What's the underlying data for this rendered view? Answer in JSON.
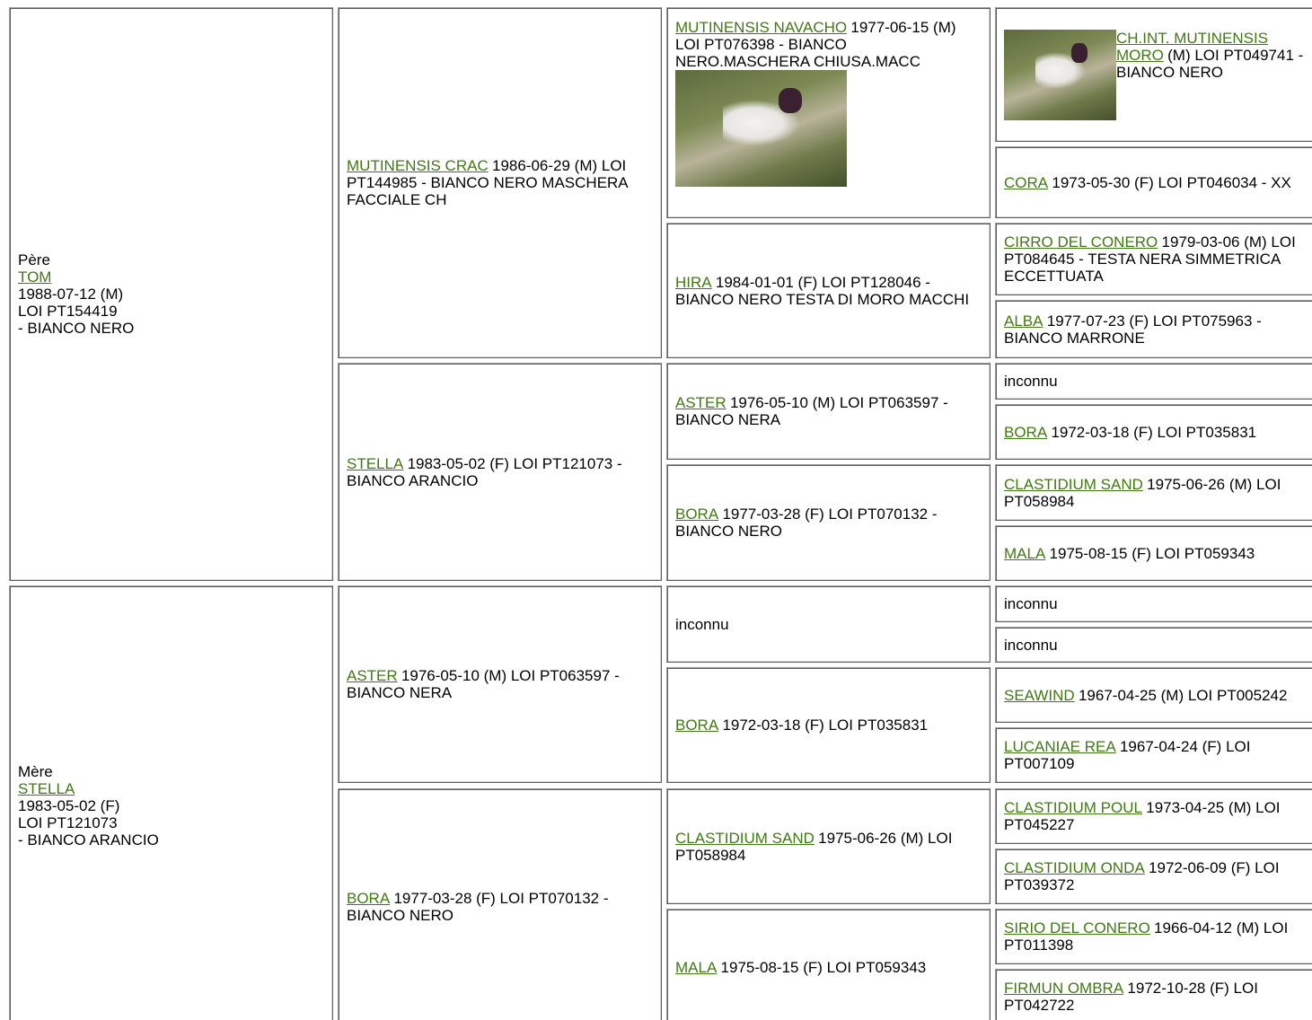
{
  "parents": [
    {
      "label": "Père",
      "name": "TOM",
      "lines": [
        "1988-07-12 (M)",
        "LOI PT154419",
        "- BIANCO NERO"
      ]
    },
    {
      "label": "Mère",
      "name": "STELLA",
      "lines": [
        "1983-05-02 (F)",
        "LOI PT121073",
        "- BIANCO ARANCIO"
      ]
    }
  ],
  "grandparents": [
    {
      "name": "MUTINENSIS CRAC",
      "details": "1986-06-29 (M) LOI PT144985 - BIANCO NERO MASCHERA FACCIALE CH"
    },
    {
      "name": "STELLA",
      "details": "1983-05-02 (F) LOI PT121073 - BIANCO ARANCIO"
    },
    {
      "name": "ASTER",
      "details": "1976-05-10 (M) LOI PT063597 - BIANCO NERA"
    },
    {
      "name": "BORA",
      "details": "1977-03-28 (F) LOI PT070132 - BIANCO NERO"
    }
  ],
  "great_grandparents": [
    {
      "name": "MUTINENSIS NAVACHO",
      "details": "1977-06-15 (M) LOI PT076398 - BIANCO NERO.MASCHERA CHIUSA.MACC"
    },
    {
      "name": "HIRA",
      "details": "1984-01-01 (F) LOI PT128046 - BIANCO NERO TESTA DI MORO MACCHI"
    },
    {
      "name": "ASTER",
      "details": "1976-05-10 (M) LOI PT063597 - BIANCO NERA"
    },
    {
      "name": "BORA",
      "details": "1977-03-28 (F) LOI PT070132 - BIANCO NERO"
    },
    {
      "unknown": "inconnu"
    },
    {
      "name": "BORA",
      "details": "1972-03-18 (F) LOI PT035831"
    },
    {
      "name": "CLASTIDIUM SAND",
      "details": "1975-06-26 (M) LOI PT058984"
    },
    {
      "name": "MALA",
      "details": "1975-08-15 (F) LOI PT059343"
    }
  ],
  "great_great_grandparents": [
    {
      "name": "CH.INT. MUTINENSIS MORO",
      "details": "(M) LOI PT049741 - BIANCO NERO"
    },
    {
      "name": "CORA",
      "details": "1973-05-30 (F) LOI PT046034 - XX"
    },
    {
      "name": "CIRRO DEL CONERO",
      "details": "1979-03-06 (M) LOI PT084645 - TESTA NERA SIMMETRICA ECCETTUATA"
    },
    {
      "name": "ALBA",
      "details": "1977-07-23 (F) LOI PT075963 - BIANCO MARRONE"
    },
    {
      "unknown": "inconnu"
    },
    {
      "name": "BORA",
      "details": "1972-03-18 (F) LOI PT035831"
    },
    {
      "name": "CLASTIDIUM SAND",
      "details": "1975-06-26 (M) LOI PT058984"
    },
    {
      "name": "MALA",
      "details": "1975-08-15 (F) LOI PT059343"
    },
    {
      "unknown": "inconnu"
    },
    {
      "unknown": "inconnu"
    },
    {
      "name": "SEAWIND",
      "details": "1967-04-25 (M) LOI PT005242"
    },
    {
      "name": "LUCANIAE REA",
      "details": "1967-04-24 (F) LOI PT007109"
    },
    {
      "name": "CLASTIDIUM POUL",
      "details": "1973-04-25 (M) LOI PT045227"
    },
    {
      "name": "CLASTIDIUM ONDA",
      "details": "1972-06-09 (F) LOI PT039372"
    },
    {
      "name": "SIRIO DEL CONERO",
      "details": "1966-04-12 (M) LOI PT011398"
    },
    {
      "name": "FIRMUN OMBRA",
      "details": "1972-10-28 (F) LOI PT042722"
    }
  ]
}
